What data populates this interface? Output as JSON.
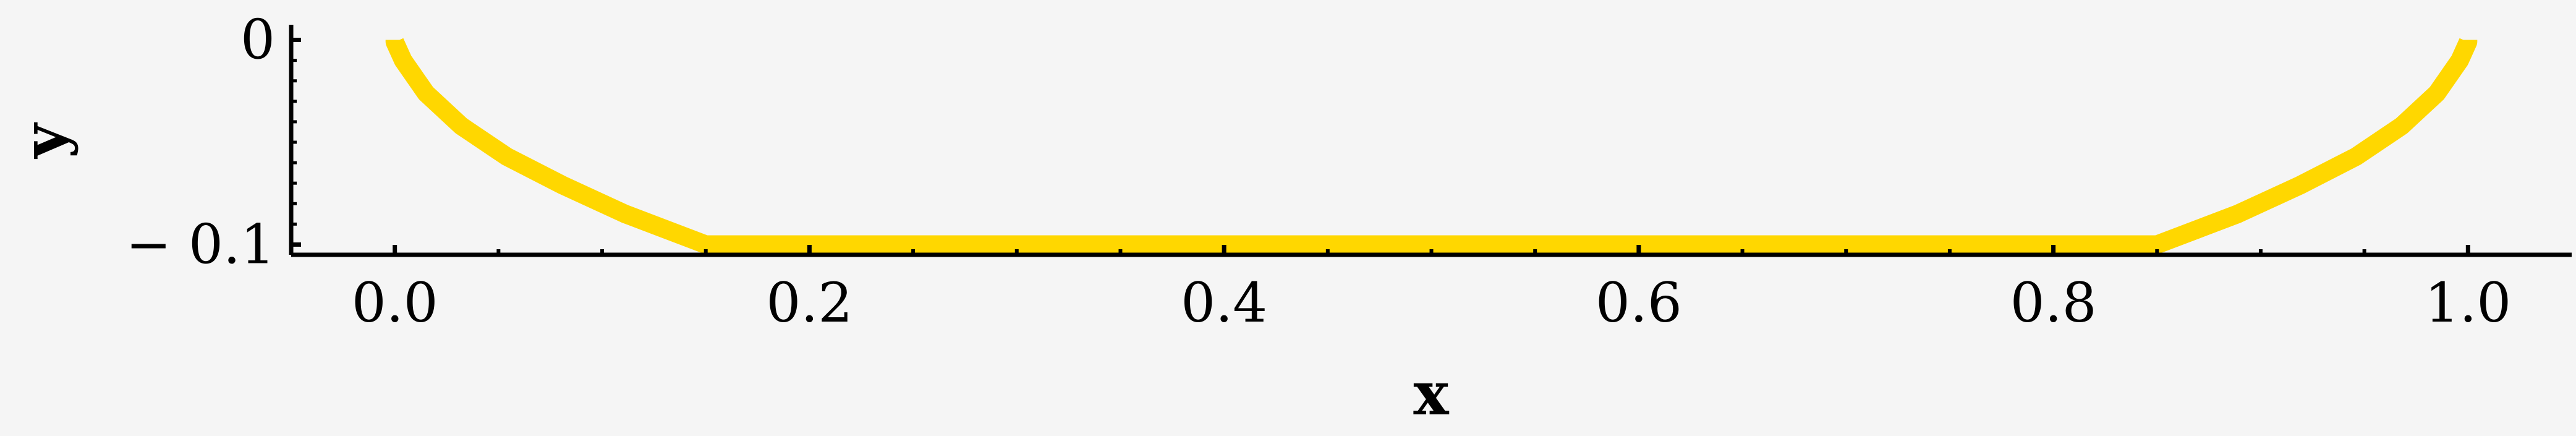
{
  "chart_data": {
    "type": "line",
    "title": "",
    "xlabel": "x",
    "ylabel": "y",
    "xlim": [
      -0.05,
      1.05
    ],
    "ylim": [
      -0.105,
      0.005
    ],
    "x_ticks": [
      0.0,
      0.2,
      0.4,
      0.6,
      0.8,
      1.0
    ],
    "x_tick_labels": [
      "0.0",
      "0.2",
      "0.4",
      "0.6",
      "0.8",
      "1.0"
    ],
    "y_ticks": [
      0,
      -0.1
    ],
    "y_tick_labels": [
      "0",
      "− 0.1"
    ],
    "grid": false,
    "legend": false,
    "colors": {
      "series": "#FFD700",
      "axis": "#000000",
      "background": "#f5f5f5"
    },
    "series": [
      {
        "x": [
          0.0,
          0.0,
          0.004,
          0.015,
          0.032,
          0.054,
          0.081,
          0.111,
          0.15,
          0.3,
          0.5,
          0.7,
          0.85,
          0.889,
          0.919,
          0.946,
          0.968,
          0.985,
          0.996,
          1.0,
          1.0
        ],
        "y": [
          0.0,
          -0.001,
          -0.01,
          -0.026,
          -0.042,
          -0.057,
          -0.071,
          -0.085,
          -0.1,
          -0.1,
          -0.1,
          -0.1,
          -0.1,
          -0.085,
          -0.071,
          -0.057,
          -0.042,
          -0.026,
          -0.01,
          -0.001,
          0.0
        ]
      }
    ]
  }
}
